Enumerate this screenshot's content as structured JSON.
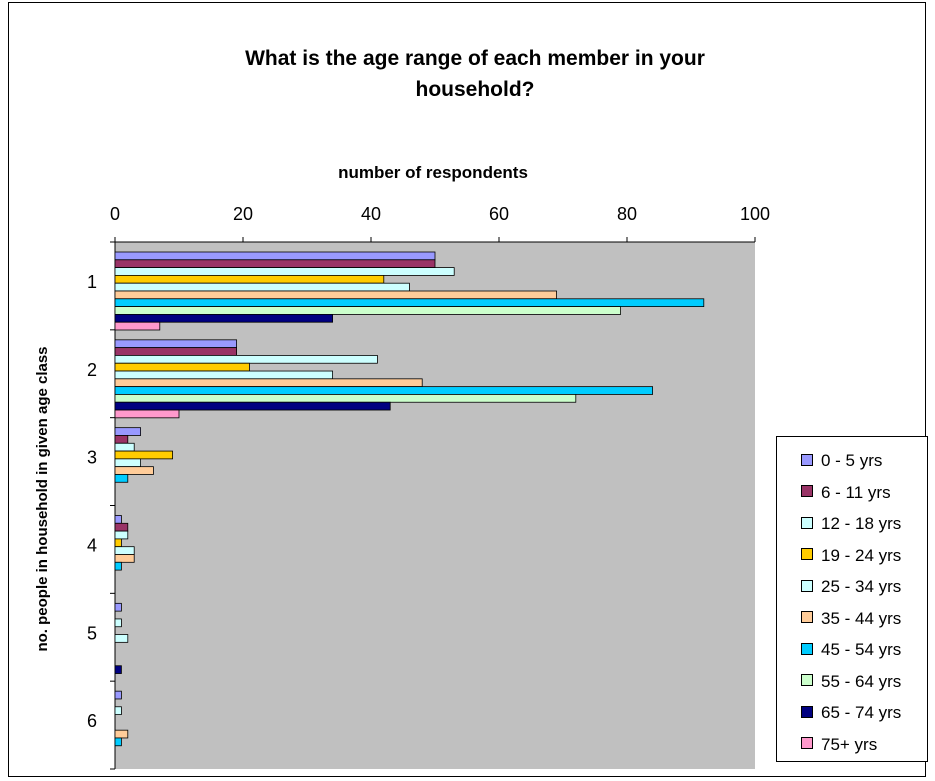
{
  "chart_data": {
    "type": "bar",
    "orientation": "horizontal",
    "title": "What is the age range of each member in your household?",
    "xlabel": "number of respondents",
    "ylabel": "no. people in household in given age class",
    "xlim": [
      0,
      100
    ],
    "x_ticks": [
      "0",
      "20",
      "40",
      "60",
      "80",
      "100"
    ],
    "categories": [
      "1",
      "2",
      "3",
      "4",
      "5",
      "6"
    ],
    "plot_background": "#c0c0c0",
    "grid": false,
    "legend_position": "right",
    "series": [
      {
        "name": "0 - 5 yrs",
        "color": "#9999ff",
        "values": [
          50,
          19,
          4,
          1,
          1,
          1
        ]
      },
      {
        "name": "6 - 11 yrs",
        "color": "#993366",
        "values": [
          50,
          19,
          2,
          2,
          0,
          0
        ]
      },
      {
        "name": "12 - 18 yrs",
        "color": "#ccffff",
        "values": [
          53,
          41,
          3,
          2,
          1,
          1
        ]
      },
      {
        "name": "19 - 24 yrs",
        "color": "#ffcc00",
        "values": [
          42,
          21,
          9,
          1,
          0,
          0
        ]
      },
      {
        "name": "25 - 34 yrs",
        "color": "#ccffff",
        "values": [
          46,
          34,
          4,
          3,
          2,
          0
        ]
      },
      {
        "name": "35 - 44 yrs",
        "color": "#ffcc99",
        "values": [
          69,
          48,
          6,
          3,
          0,
          2
        ]
      },
      {
        "name": "45 - 54 yrs",
        "color": "#00ccff",
        "values": [
          92,
          84,
          2,
          1,
          0,
          1
        ]
      },
      {
        "name": "55 - 64 yrs",
        "color": "#ccffcc",
        "values": [
          79,
          72,
          0,
          0,
          0,
          0
        ]
      },
      {
        "name": "65 - 74 yrs",
        "color": "#000080",
        "values": [
          34,
          43,
          0,
          0,
          1,
          0
        ]
      },
      {
        "name": "75+ yrs",
        "color": "#ff99cc",
        "values": [
          7,
          10,
          0,
          0,
          0,
          0
        ]
      }
    ],
    "series_25_34_color": "#ccffff"
  }
}
